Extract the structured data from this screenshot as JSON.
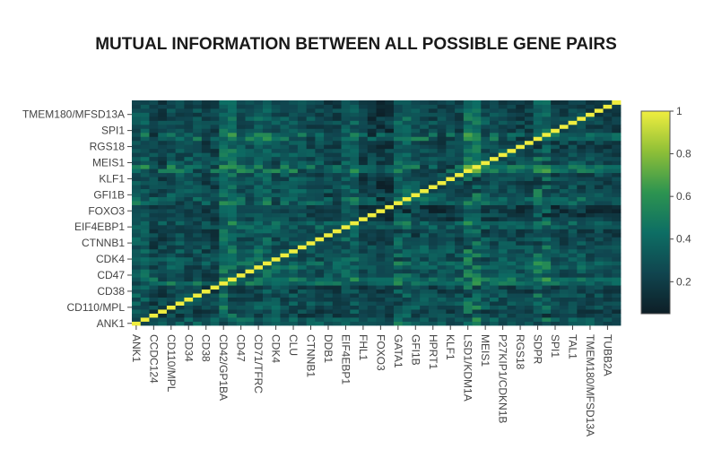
{
  "chart_data": {
    "type": "heatmap",
    "title": "MUTUAL INFORMATION BETWEEN ALL POSSIBLE GENE PAIRS",
    "genes": [
      "ANK1",
      "CCDC124",
      "CD110/MPL",
      "CD34",
      "CD38",
      "CD42/GP1BA",
      "CD47",
      "CD71/TFRC",
      "CDK4",
      "CLU",
      "CTNNB1",
      "DDB1",
      "EIF4EBP1",
      "FHL1",
      "FOXO3",
      "GATA1",
      "GFI1B",
      "HPRT1",
      "KLF1",
      "LSD1/KDM1A",
      "MEIS1",
      "P27KIP1/CDKN1B",
      "RGS18",
      "SDPR",
      "SPI1",
      "TAL1",
      "TMEM180/MFSD13A",
      "TUBB2A"
    ],
    "x_tick_labels": [
      "ANK1",
      "CCDC124",
      "CD110/MPL",
      "CD34",
      "CD38",
      "CD42/GP1BA",
      "CD47",
      "CD71/TFRC",
      "CDK4",
      "CLU",
      "CTNNB1",
      "DDB1",
      "EIF4EBP1",
      "FHL1",
      "FOXO3",
      "GATA1",
      "GFI1B",
      "HPRT1",
      "KLF1",
      "LSD1/KDM1A",
      "MEIS1",
      "P27KIP1/CDKN1B",
      "RGS18",
      "SDPR",
      "SPI1",
      "TAL1",
      "TMEM180/MFSD13A",
      "TUBB2A"
    ],
    "y_tick_labels": [
      "ANK1",
      "CD110/MPL",
      "CD38",
      "CD47",
      "CDK4",
      "CTNNB1",
      "EIF4EBP1",
      "FOXO3",
      "GFI1B",
      "KLF1",
      "MEIS1",
      "RGS18",
      "SPI1",
      "TMEM180/MFSD13A"
    ],
    "cells_per_gene": 2,
    "diagonal_value": 1,
    "base_value": 0.18,
    "gene_strength": [
      0.2,
      0.1,
      0.16,
      0.14,
      0.1,
      0.3,
      0.18,
      0.24,
      0.16,
      0.18,
      0.14,
      0.1,
      0.22,
      0.06,
      0.04,
      0.24,
      0.16,
      0.12,
      0.12,
      0.34,
      0.16,
      0.14,
      0.1,
      0.3,
      0.1,
      0.14,
      0.1,
      0.04
    ],
    "colorscale": [
      "#0d1e26",
      "#10454f",
      "#0d6e64",
      "#2d9450",
      "#8ebf37",
      "#f0ee3f"
    ],
    "zmin": 0.05,
    "zmax": 1,
    "colorbar": {
      "tick_labels": [
        "0.2",
        "0.4",
        "0.6",
        "0.8",
        "1"
      ],
      "tick_values": [
        0.2,
        0.4,
        0.6,
        0.8,
        1
      ]
    }
  }
}
